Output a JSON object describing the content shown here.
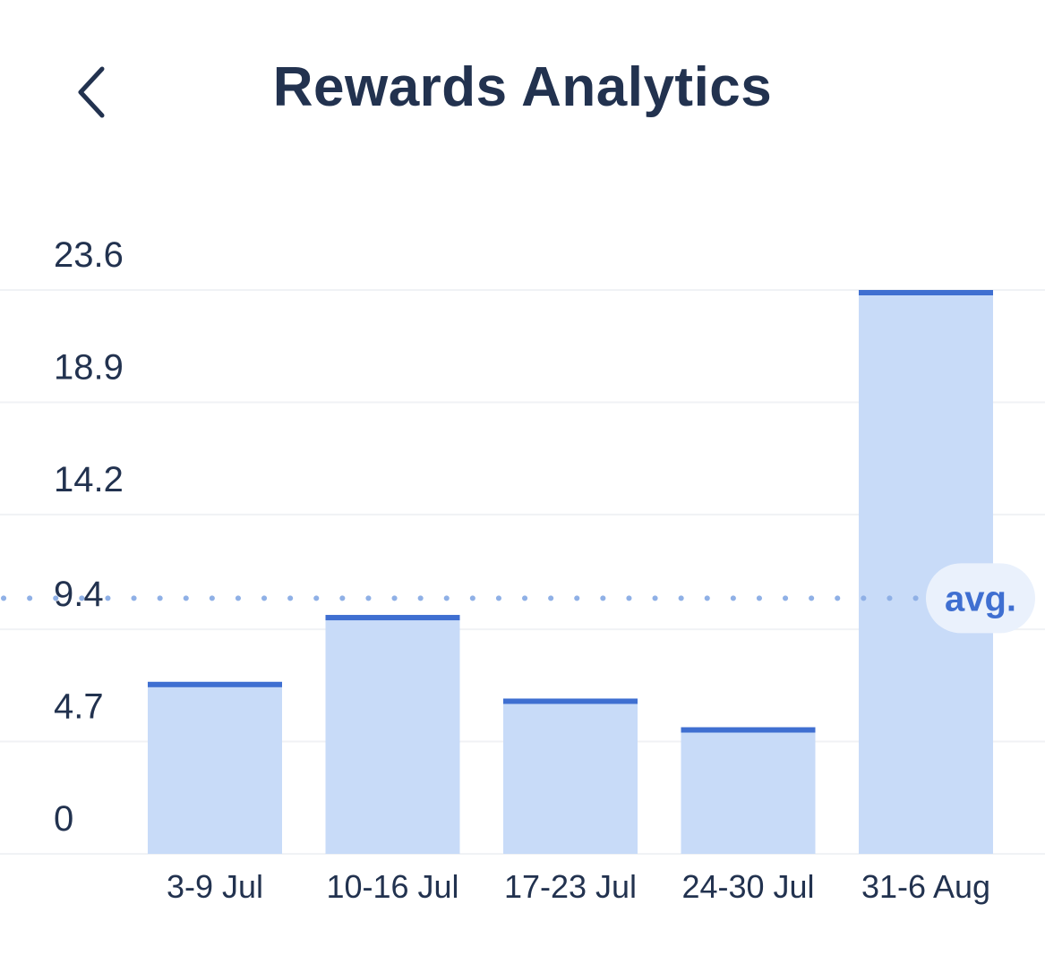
{
  "header": {
    "title": "Rewards Analytics",
    "back_icon": "chevron-left-icon"
  },
  "colors": {
    "title": "#22324f",
    "bar_fill": "#c8dbf8",
    "bar_cap": "#3f6fd1",
    "avg_line": "#8fb0e6",
    "avg_badge_bg": "#eaf1fc",
    "avg_text": "#3f6fd1",
    "grid": "#f0f2f5"
  },
  "chart_data": {
    "type": "bar",
    "title": "",
    "xlabel": "",
    "ylabel": "",
    "categories": [
      "3-9 Jul",
      "10-16 Jul",
      "17-23 Jul",
      "24-30 Jul",
      "31-6 Aug"
    ],
    "values": [
      7.2,
      10.0,
      6.5,
      5.3,
      24.7
    ],
    "yticks": [
      "0",
      "4.7",
      "9.4",
      "14.2",
      "18.9",
      "23.6"
    ],
    "ylim": [
      0,
      23.6
    ],
    "grid": true,
    "average": {
      "label": "avg.",
      "value": 10.7
    }
  }
}
